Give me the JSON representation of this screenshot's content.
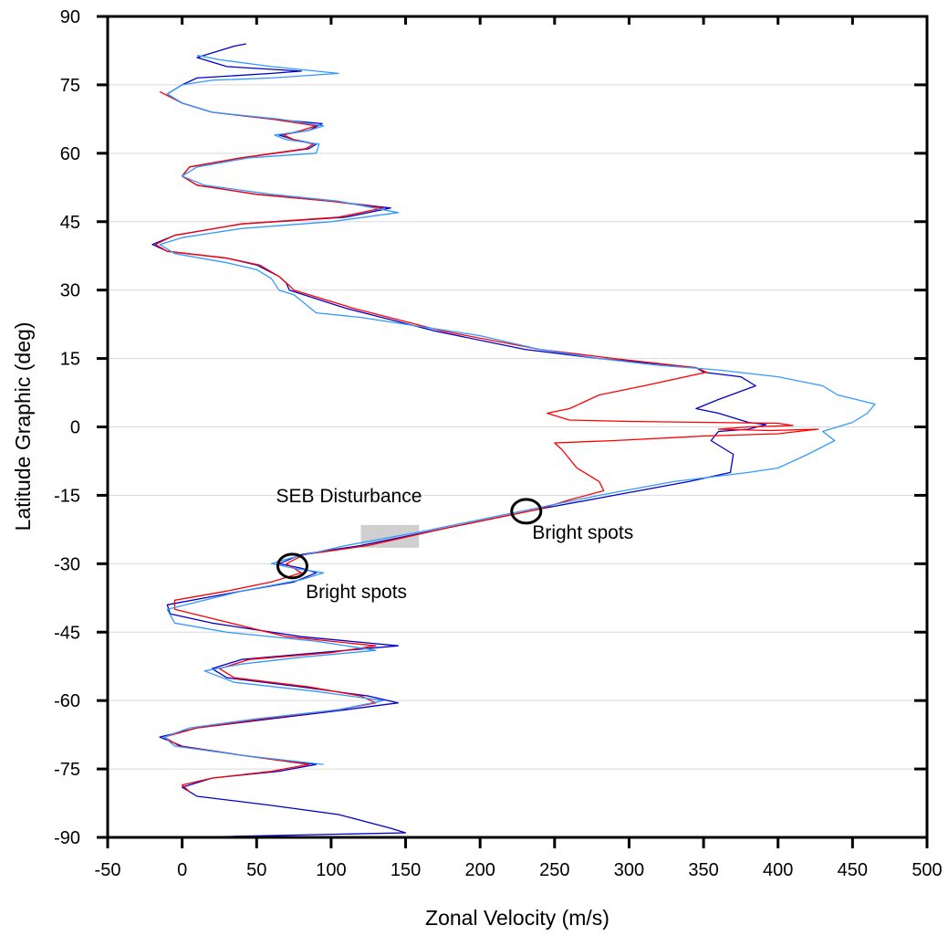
{
  "chart_data": {
    "type": "line",
    "title": "",
    "xlabel": "Zonal Velocity (m/s)",
    "ylabel": "Latitude Graphic (deg)",
    "xlim": [
      -50,
      500
    ],
    "ylim": [
      -90,
      90
    ],
    "xticks": [
      "-50",
      "0",
      "50",
      "100",
      "150",
      "200",
      "250",
      "300",
      "350",
      "400",
      "450",
      "500"
    ],
    "yticks": [
      "90",
      "75",
      "60",
      "45",
      "30",
      "15",
      "0",
      "-15",
      "-30",
      "-45",
      "-60",
      "-75",
      "-90"
    ],
    "grid": "horizontal",
    "series": [
      {
        "color": "#0000cc",
        "points": [
          [
            43,
            84
          ],
          [
            35,
            83.5
          ],
          [
            20,
            82
          ],
          [
            10,
            81
          ],
          [
            30,
            79
          ],
          [
            80,
            78
          ],
          [
            60,
            77.5
          ],
          [
            10,
            76.5
          ],
          [
            0,
            75
          ],
          [
            -10,
            73
          ],
          [
            0,
            71
          ],
          [
            20,
            69
          ],
          [
            60,
            67.5
          ],
          [
            94,
            66.5
          ],
          [
            85,
            65
          ],
          [
            65,
            64
          ],
          [
            75,
            63
          ],
          [
            90,
            62
          ],
          [
            85,
            61
          ],
          [
            40,
            59
          ],
          [
            5,
            57
          ],
          [
            0,
            55
          ],
          [
            10,
            53
          ],
          [
            50,
            51
          ],
          [
            100,
            49.5
          ],
          [
            140,
            48
          ],
          [
            110,
            46
          ],
          [
            40,
            44.5
          ],
          [
            -5,
            42
          ],
          [
            -20,
            40
          ],
          [
            -10,
            38.5
          ],
          [
            30,
            37
          ],
          [
            50,
            35.5
          ],
          [
            65,
            33
          ],
          [
            70,
            31.5
          ],
          [
            72,
            30
          ],
          [
            110,
            26
          ],
          [
            170,
            21
          ],
          [
            230,
            17
          ],
          [
            280,
            15
          ],
          [
            330,
            13.5
          ],
          [
            345,
            13
          ],
          [
            350,
            12
          ],
          [
            375,
            11
          ],
          [
            385,
            9
          ],
          [
            360,
            6
          ],
          [
            345,
            4
          ],
          [
            360,
            3
          ],
          [
            380,
            1
          ],
          [
            392,
            0.5
          ],
          [
            380,
            -0.5
          ],
          [
            360,
            -1
          ],
          [
            355,
            -3
          ],
          [
            370,
            -6
          ],
          [
            368,
            -10
          ],
          [
            340,
            -12
          ],
          [
            290,
            -15
          ],
          [
            240,
            -18
          ],
          [
            180,
            -22
          ],
          [
            120,
            -26
          ],
          [
            80,
            -28
          ],
          [
            65,
            -30
          ],
          [
            80,
            -31
          ],
          [
            90,
            -32
          ],
          [
            75,
            -34
          ],
          [
            40,
            -36
          ],
          [
            -10,
            -39
          ],
          [
            -8,
            -41
          ],
          [
            20,
            -43
          ],
          [
            80,
            -46
          ],
          [
            145,
            -48
          ],
          [
            110,
            -49
          ],
          [
            40,
            -51
          ],
          [
            20,
            -53
          ],
          [
            30,
            -55
          ],
          [
            80,
            -57
          ],
          [
            125,
            -59
          ],
          [
            145,
            -60.5
          ],
          [
            110,
            -62
          ],
          [
            60,
            -64
          ],
          [
            10,
            -66
          ],
          [
            -15,
            -68
          ],
          [
            0,
            -70
          ],
          [
            40,
            -72
          ],
          [
            90,
            -74
          ],
          [
            65,
            -75.5
          ],
          [
            20,
            -77
          ],
          [
            0,
            -79
          ],
          [
            10,
            -81
          ],
          [
            60,
            -83
          ],
          [
            105,
            -85
          ],
          [
            140,
            -88
          ],
          [
            150,
            -89
          ],
          [
            0,
            -90
          ]
        ]
      },
      {
        "color": "#ff0000",
        "points": [
          [
            -15,
            73.5
          ],
          [
            0,
            71
          ],
          [
            20,
            69
          ],
          [
            60,
            67.5
          ],
          [
            90,
            66
          ],
          [
            80,
            65
          ],
          [
            68,
            64
          ],
          [
            75,
            63
          ],
          [
            88,
            62
          ],
          [
            83,
            61
          ],
          [
            40,
            59
          ],
          [
            5,
            57
          ],
          [
            0,
            55
          ],
          [
            10,
            53
          ],
          [
            50,
            51
          ],
          [
            100,
            49.5
          ],
          [
            135,
            48
          ],
          [
            105,
            46
          ],
          [
            40,
            44.5
          ],
          [
            -5,
            42
          ],
          [
            -18,
            40
          ],
          [
            -10,
            38.5
          ],
          [
            30,
            37
          ],
          [
            52,
            35.5
          ],
          [
            65,
            33
          ],
          [
            72,
            31
          ],
          [
            75,
            30
          ],
          [
            115,
            26
          ],
          [
            175,
            21
          ],
          [
            240,
            17
          ],
          [
            290,
            15
          ],
          [
            345,
            13
          ],
          [
            352,
            12
          ],
          [
            310,
            9
          ],
          [
            280,
            7
          ],
          [
            260,
            4
          ],
          [
            245,
            3
          ],
          [
            260,
            1.5
          ],
          [
            300,
            1.2
          ],
          [
            350,
            1
          ],
          [
            400,
            0.8
          ],
          [
            410,
            0.3
          ],
          [
            380,
            0
          ],
          [
            360,
            -0.5
          ],
          [
            395,
            -0.8
          ],
          [
            427,
            -0.5
          ],
          [
            400,
            -1.5
          ],
          [
            350,
            -2
          ],
          [
            290,
            -3
          ],
          [
            250,
            -3.5
          ],
          [
            255,
            -5
          ],
          [
            265,
            -9
          ],
          [
            280,
            -12
          ],
          [
            283,
            -14
          ],
          [
            260,
            -16
          ],
          [
            240,
            -18
          ],
          [
            180,
            -22
          ],
          [
            125,
            -26
          ],
          [
            82,
            -28
          ],
          [
            70,
            -30
          ],
          [
            80,
            -32
          ],
          [
            60,
            -34
          ],
          [
            30,
            -36
          ],
          [
            -5,
            -38
          ],
          [
            -5,
            -40
          ],
          [
            20,
            -42
          ],
          [
            70,
            -46
          ],
          [
            130,
            -48
          ],
          [
            100,
            -49.5
          ],
          [
            45,
            -51
          ],
          [
            25,
            -53
          ],
          [
            35,
            -55
          ],
          [
            85,
            -57
          ],
          [
            120,
            -59
          ],
          [
            130,
            -60.5
          ],
          [
            105,
            -62
          ],
          [
            55,
            -64
          ],
          [
            10,
            -66
          ],
          [
            -12,
            -68
          ],
          [
            -2,
            -70
          ],
          [
            40,
            -72
          ],
          [
            85,
            -74
          ],
          [
            60,
            -75.5
          ],
          [
            20,
            -77
          ],
          [
            0,
            -78.5
          ],
          [
            5,
            -80
          ]
        ]
      },
      {
        "color": "#3399ff",
        "points": [
          [
            10,
            81.5
          ],
          [
            25,
            80.5
          ],
          [
            60,
            79
          ],
          [
            105,
            77.5
          ],
          [
            60,
            76.5
          ],
          [
            20,
            76
          ],
          [
            0,
            75
          ],
          [
            -10,
            73
          ],
          [
            0,
            71
          ],
          [
            20,
            69
          ],
          [
            65,
            67.5
          ],
          [
            95,
            66
          ],
          [
            85,
            65
          ],
          [
            62,
            64
          ],
          [
            70,
            63
          ],
          [
            92,
            62
          ],
          [
            90,
            60
          ],
          [
            45,
            59
          ],
          [
            10,
            57
          ],
          [
            0,
            55
          ],
          [
            15,
            53
          ],
          [
            60,
            51
          ],
          [
            105,
            49.5
          ],
          [
            145,
            47
          ],
          [
            100,
            45
          ],
          [
            40,
            43.5
          ],
          [
            0,
            41.5
          ],
          [
            -15,
            40
          ],
          [
            -5,
            38
          ],
          [
            30,
            36
          ],
          [
            50,
            34.5
          ],
          [
            60,
            32.5
          ],
          [
            65,
            30
          ],
          [
            75,
            29
          ],
          [
            90,
            25
          ],
          [
            120,
            24
          ],
          [
            160,
            22
          ],
          [
            200,
            20
          ],
          [
            240,
            17
          ],
          [
            280,
            15
          ],
          [
            320,
            13.5
          ],
          [
            360,
            12.5
          ],
          [
            400,
            11
          ],
          [
            430,
            9
          ],
          [
            440,
            7
          ],
          [
            465,
            5
          ],
          [
            460,
            3
          ],
          [
            450,
            1
          ],
          [
            430,
            -1
          ],
          [
            438,
            -3
          ],
          [
            420,
            -6
          ],
          [
            400,
            -9
          ],
          [
            380,
            -10
          ],
          [
            330,
            -12
          ],
          [
            280,
            -15
          ],
          [
            220,
            -19
          ],
          [
            160,
            -23
          ],
          [
            110,
            -26
          ],
          [
            70,
            -29
          ],
          [
            60,
            -30
          ],
          [
            75,
            -31
          ],
          [
            95,
            -32
          ],
          [
            80,
            -33.5
          ],
          [
            40,
            -36
          ],
          [
            -10,
            -40
          ],
          [
            -5,
            -43
          ],
          [
            30,
            -45
          ],
          [
            90,
            -47
          ],
          [
            130,
            -49
          ],
          [
            80,
            -50.5
          ],
          [
            40,
            -52
          ],
          [
            15,
            -53.5
          ],
          [
            35,
            -56
          ],
          [
            90,
            -58
          ],
          [
            135,
            -60
          ],
          [
            105,
            -62
          ],
          [
            50,
            -64
          ],
          [
            5,
            -66
          ],
          [
            -12,
            -68
          ],
          [
            -5,
            -70
          ],
          [
            40,
            -72
          ],
          [
            95,
            -74
          ]
        ]
      }
    ],
    "annotations": [
      {
        "text": "SEB Disturbance",
        "x": 63,
        "y": -16.5
      },
      {
        "text": "Bright spots",
        "x": 235,
        "y": -24.5
      },
      {
        "text": "Bright spots",
        "x": 83,
        "y": -37.5
      }
    ],
    "markers": [
      {
        "type": "circle",
        "x": 231,
        "y": -18.5
      },
      {
        "type": "circle",
        "x": 74,
        "y": -30.5
      },
      {
        "type": "shaded-rect",
        "x": [
          120,
          159
        ],
        "y": [
          -21.5,
          -26.5
        ]
      }
    ]
  }
}
